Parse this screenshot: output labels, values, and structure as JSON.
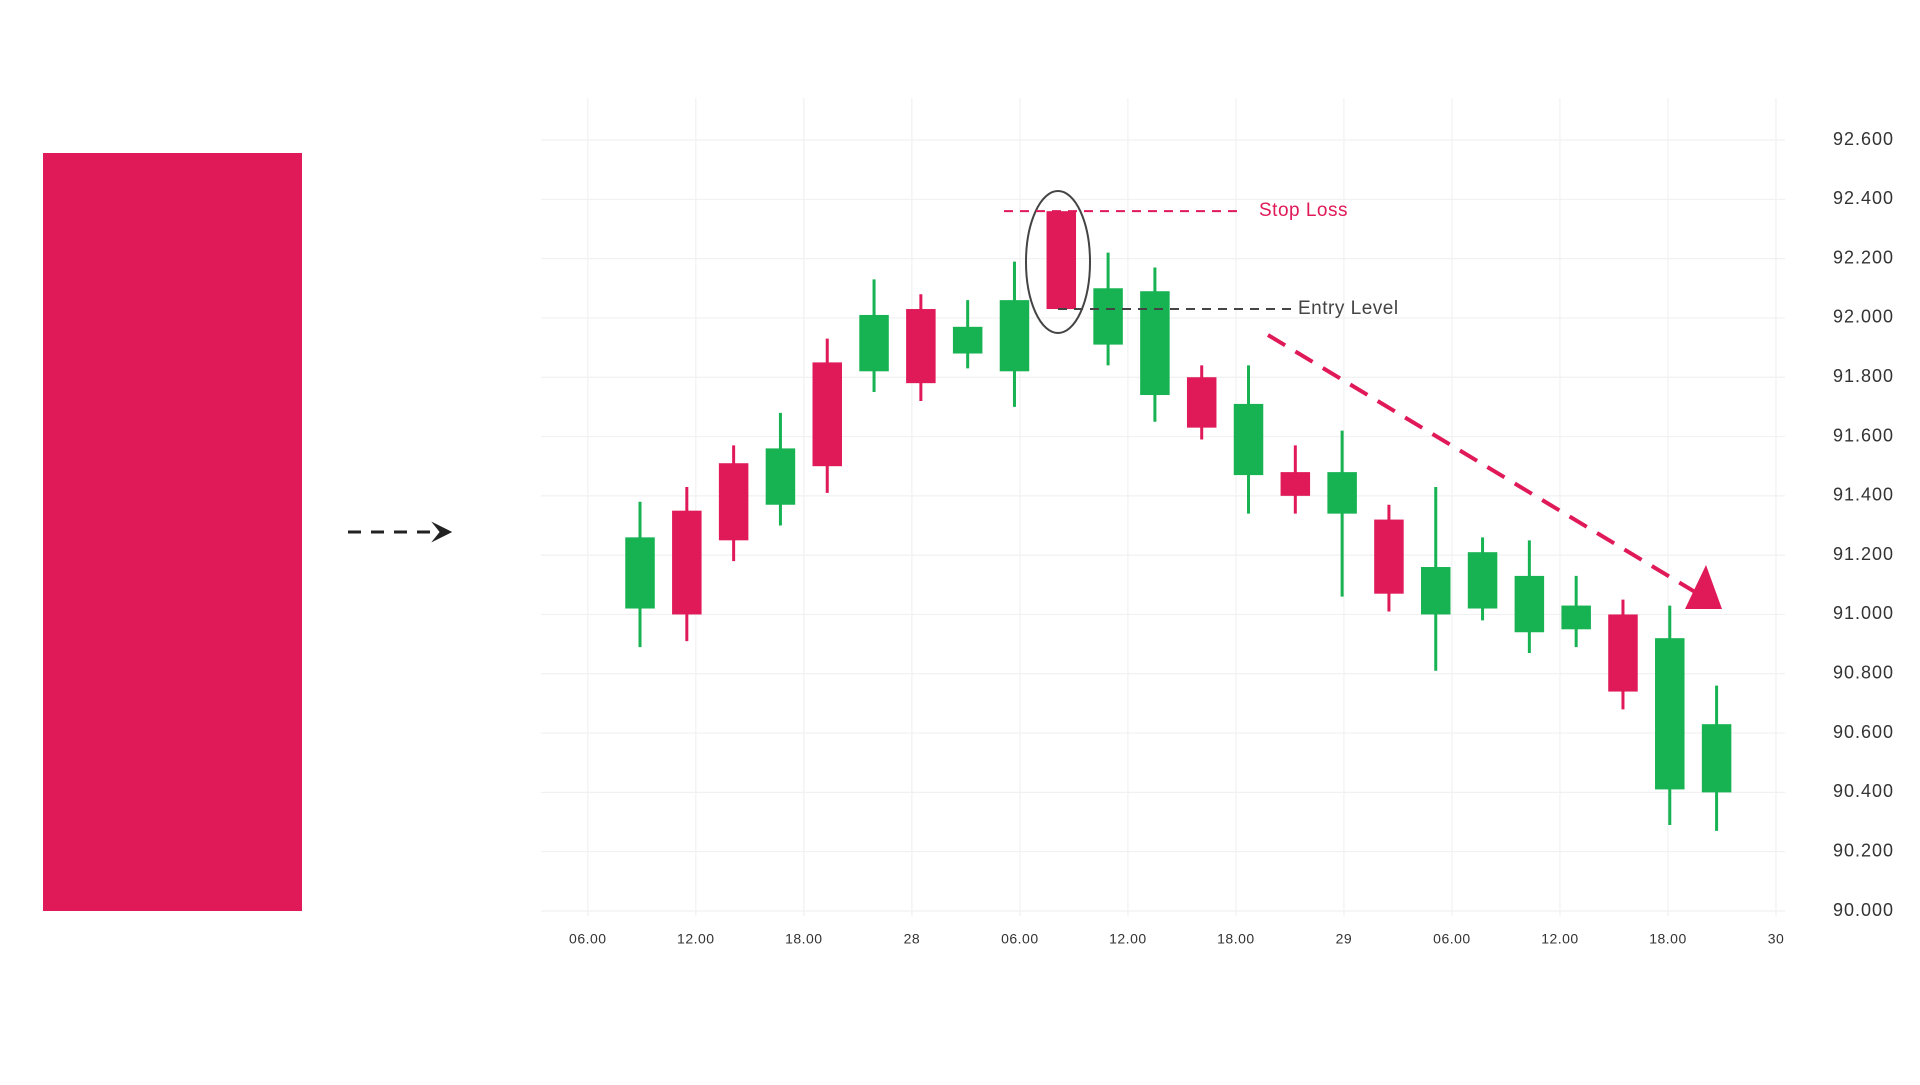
{
  "chart_data": {
    "type": "candlestick",
    "x": [
      2.9,
      5.5,
      8.1,
      10.7,
      13.3,
      15.9,
      18.5,
      21.1,
      23.7,
      26.3,
      28.9,
      31.5,
      34.1,
      36.7,
      39.3,
      41.9,
      44.5,
      47.1,
      49.7,
      52.3,
      54.9,
      57.5,
      60.1,
      62.7
    ],
    "open": [
      91.02,
      91.35,
      91.51,
      91.37,
      91.85,
      91.82,
      92.03,
      91.88,
      91.82,
      92.36,
      91.91,
      91.74,
      91.8,
      91.47,
      91.48,
      91.34,
      91.32,
      91.0,
      91.02,
      90.94,
      90.95,
      91.0,
      90.41,
      90.4
    ],
    "high": [
      91.38,
      91.43,
      91.57,
      91.68,
      91.93,
      92.13,
      92.08,
      92.06,
      92.19,
      92.36,
      92.22,
      92.17,
      91.84,
      91.84,
      91.57,
      91.62,
      91.37,
      91.43,
      91.26,
      91.25,
      91.13,
      91.05,
      91.03,
      90.76
    ],
    "low": [
      90.89,
      90.91,
      91.18,
      91.3,
      91.41,
      91.75,
      91.72,
      91.83,
      91.7,
      92.03,
      91.84,
      91.65,
      91.59,
      91.34,
      91.34,
      91.06,
      91.01,
      90.81,
      90.98,
      90.87,
      90.89,
      90.68,
      90.29,
      90.27
    ],
    "close": [
      91.26,
      91.0,
      91.25,
      91.56,
      91.5,
      92.01,
      91.78,
      91.97,
      92.06,
      92.03,
      92.1,
      92.09,
      91.63,
      91.71,
      91.4,
      91.48,
      91.07,
      91.16,
      91.21,
      91.13,
      91.03,
      90.74,
      90.92,
      90.63
    ],
    "up_color": "#17b352",
    "down_color": "#e01a59",
    "xlim": [
      -2.6,
      66.5
    ],
    "xticks": [
      {
        "value": 0,
        "label": "06.00"
      },
      {
        "value": 6,
        "label": "12.00"
      },
      {
        "value": 12,
        "label": "18.00"
      },
      {
        "value": 18,
        "label": "28"
      },
      {
        "value": 24,
        "label": "06.00"
      },
      {
        "value": 30,
        "label": "12.00"
      },
      {
        "value": 36,
        "label": "18.00"
      },
      {
        "value": 42,
        "label": "29"
      },
      {
        "value": 48,
        "label": "06.00"
      },
      {
        "value": 54,
        "label": "12.00"
      },
      {
        "value": 60,
        "label": "18.00"
      },
      {
        "value": 66,
        "label": "30"
      }
    ],
    "ylim": [
      90,
      92.6
    ],
    "yticks": [
      {
        "value": 90,
        "label": "90.000"
      },
      {
        "value": 90.2,
        "label": "90.200"
      },
      {
        "value": 90.4,
        "label": "90.400"
      },
      {
        "value": 90.6,
        "label": "90.600"
      },
      {
        "value": 90.8,
        "label": "90.800"
      },
      {
        "value": 91,
        "label": "91.000"
      },
      {
        "value": 91.2,
        "label": "91.200"
      },
      {
        "value": 91.4,
        "label": "91.400"
      },
      {
        "value": 91.6,
        "label": "91.600"
      },
      {
        "value": 91.8,
        "label": "91.800"
      },
      {
        "value": 92,
        "label": "92.000"
      },
      {
        "value": 92.2,
        "label": "92.200"
      },
      {
        "value": 92.4,
        "label": "92.400"
      },
      {
        "value": 92.6,
        "label": "92.600"
      }
    ],
    "grid": true,
    "annotations": [
      {
        "text": "Stop Loss",
        "value": 92.36,
        "color": "#e01a59"
      },
      {
        "text": "Entry Level",
        "value": 92.03,
        "color": "#444444"
      }
    ]
  }
}
